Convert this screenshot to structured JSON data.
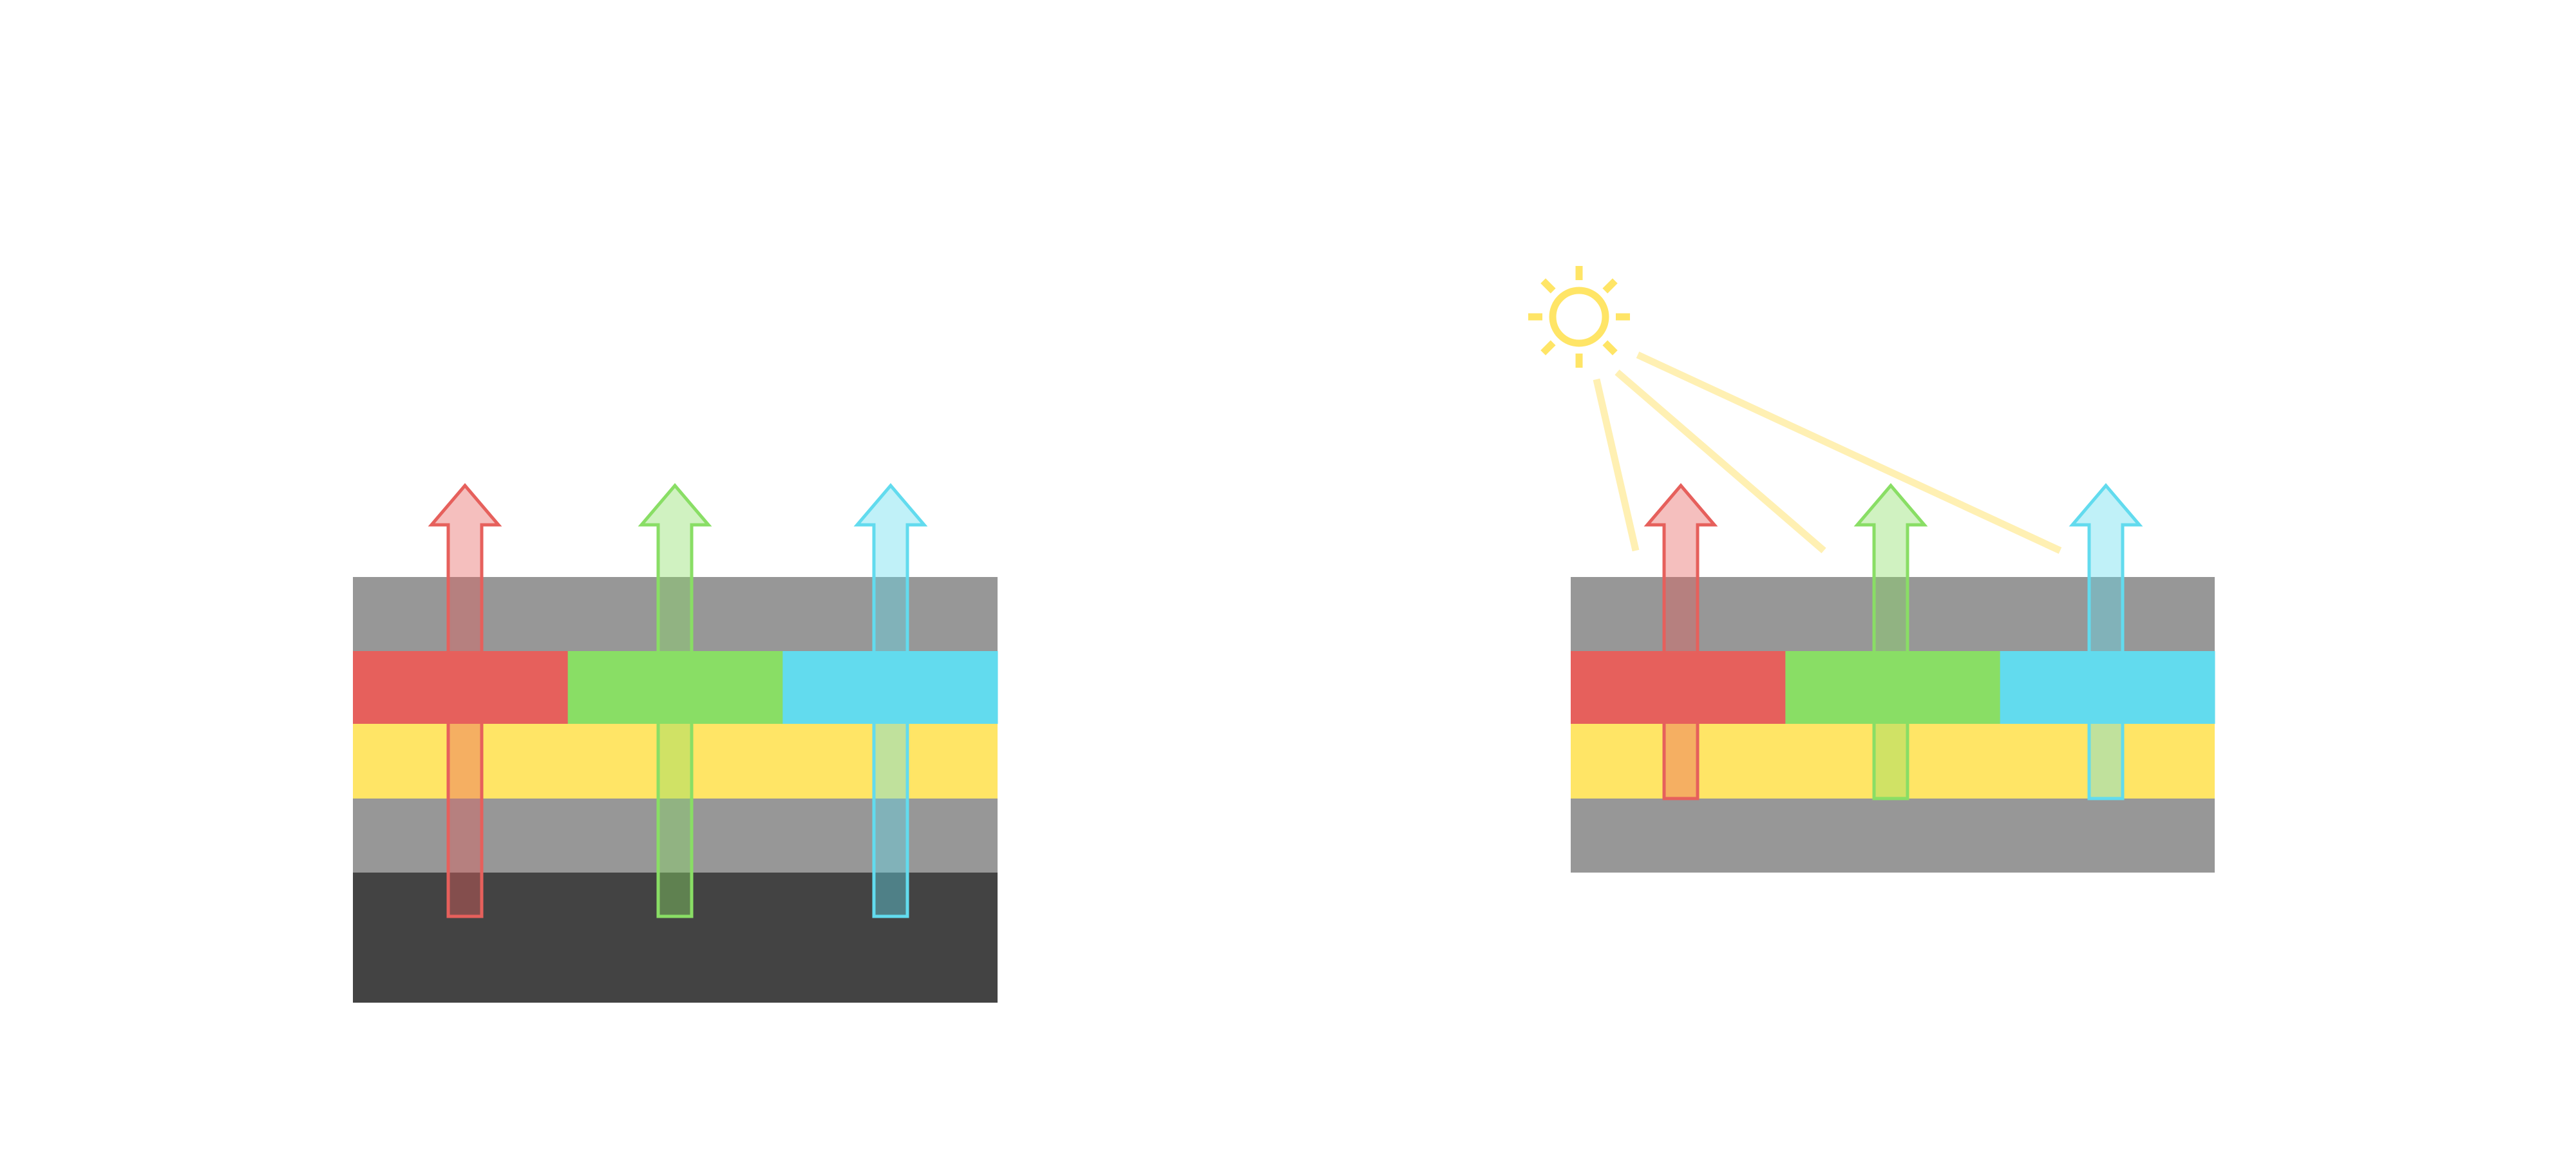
{
  "colors": {
    "gray_layer": "#979797",
    "dark_layer": "#434343",
    "yellow_layer": "#FFE566",
    "red": "#E6605C",
    "green": "#89DE65",
    "cyan": "#62DBEE",
    "sun": "#FFE566",
    "light_ray": "#FFF0B3"
  },
  "diagrams": [
    {
      "name": "left-stack",
      "layers": [
        "gray",
        "rgb",
        "yellow",
        "gray",
        "dark"
      ],
      "arrows": [
        "red",
        "green",
        "cyan"
      ],
      "sun": false
    },
    {
      "name": "right-stack",
      "layers": [
        "gray",
        "rgb",
        "yellow",
        "gray"
      ],
      "arrows": [
        "red",
        "green",
        "cyan"
      ],
      "sun": true
    }
  ],
  "icons": {
    "sun": "sun-icon",
    "arrow": "arrow-up-icon"
  }
}
